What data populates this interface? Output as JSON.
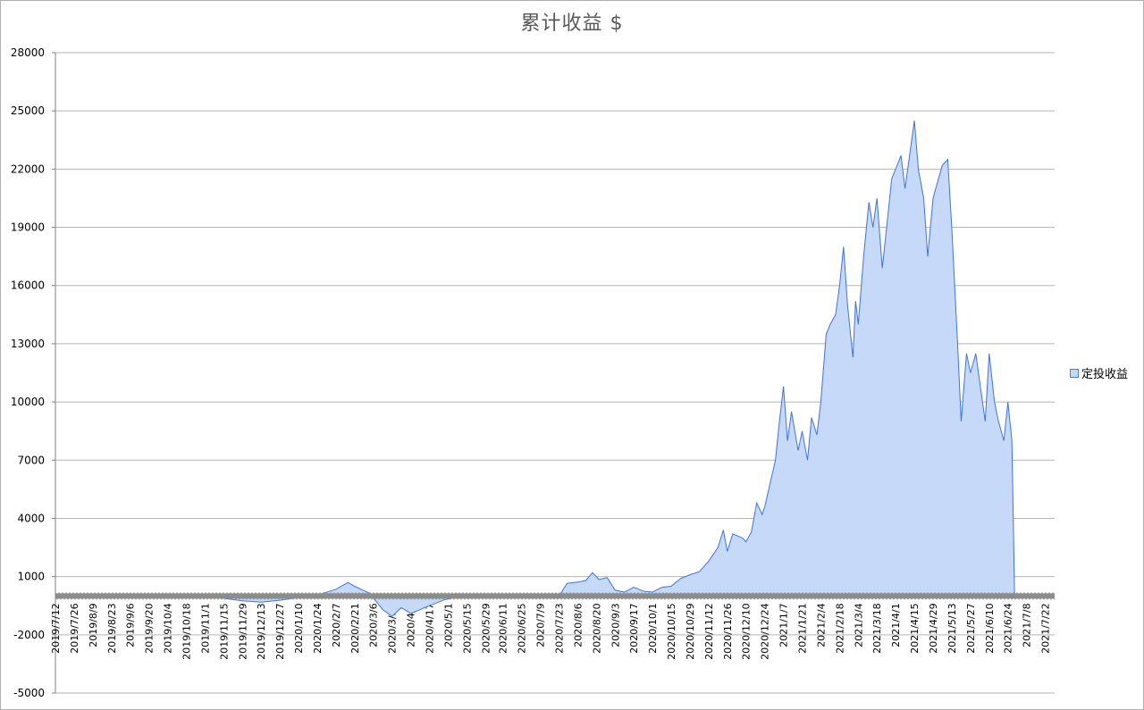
{
  "chart_data": {
    "type": "area",
    "title": "累计收益 $",
    "xlabel": "",
    "ylabel": "",
    "ylim": [
      -5000,
      28000
    ],
    "yticks": [
      28000,
      25000,
      22000,
      19000,
      16000,
      13000,
      10000,
      7000,
      4000,
      1000,
      -2000,
      -5000
    ],
    "x_tick_labels": [
      "2019/7/12",
      "2019/7/26",
      "2019/8/9",
      "2019/8/23",
      "2019/9/6",
      "2019/9/20",
      "2019/10/4",
      "2019/10/18",
      "2019/11/1",
      "2019/11/15",
      "2019/11/29",
      "2019/12/13",
      "2019/12/27",
      "2020/1/10",
      "2020/1/24",
      "2020/2/7",
      "2020/2/21",
      "2020/3/6",
      "2020/3/20",
      "2020/4/3",
      "2020/4/17",
      "2020/5/1",
      "2020/5/15",
      "2020/5/29",
      "2020/6/11",
      "2020/6/25",
      "2020/7/9",
      "2020/7/23",
      "2020/8/6",
      "2020/8/20",
      "2020/9/3",
      "2020/9/17",
      "2020/10/1",
      "2020/10/15",
      "2020/10/29",
      "2020/11/12",
      "2020/11/26",
      "2020/12/10",
      "2020/12/24",
      "2021/1/7",
      "2021/1/21",
      "2021/2/4",
      "2021/2/18",
      "2021/3/4",
      "2021/3/18",
      "2021/4/1",
      "2021/4/15",
      "2021/4/29",
      "2021/5/13",
      "2021/5/27",
      "2021/6/10",
      "2021/6/24",
      "2021/7/8",
      "2021/7/22"
    ],
    "x_range": [
      "2019/7/12",
      "2021/7/29"
    ],
    "grid": true,
    "legend_position": "right",
    "colors": {
      "fill": "#c6d9f8",
      "line": "#3f74d8",
      "grid": "#b5b5b5",
      "baseline": "#8c8c8c"
    },
    "series": [
      {
        "name": "定投收益",
        "points": [
          [
            "2019/7/12",
            0
          ],
          [
            "2019/9/20",
            20
          ],
          [
            "2019/10/18",
            60
          ],
          [
            "2019/11/15",
            -120
          ],
          [
            "2019/11/29",
            -250
          ],
          [
            "2019/12/13",
            -320
          ],
          [
            "2019/12/27",
            -220
          ],
          [
            "2020/1/10",
            -80
          ],
          [
            "2020/1/24",
            50
          ],
          [
            "2020/2/7",
            350
          ],
          [
            "2020/2/16",
            700
          ],
          [
            "2020/2/21",
            500
          ],
          [
            "2020/3/3",
            150
          ],
          [
            "2020/3/13",
            -700
          ],
          [
            "2020/3/20",
            -1050
          ],
          [
            "2020/3/27",
            -600
          ],
          [
            "2020/4/3",
            -900
          ],
          [
            "2020/4/17",
            -500
          ],
          [
            "2020/4/28",
            -200
          ],
          [
            "2020/5/8",
            -50
          ],
          [
            "2020/6/1",
            0
          ],
          [
            "2020/7/23",
            0
          ],
          [
            "2020/7/29",
            650
          ],
          [
            "2020/8/6",
            720
          ],
          [
            "2020/8/12",
            800
          ],
          [
            "2020/8/17",
            1200
          ],
          [
            "2020/8/22",
            850
          ],
          [
            "2020/8/28",
            950
          ],
          [
            "2020/9/3",
            300
          ],
          [
            "2020/9/10",
            200
          ],
          [
            "2020/9/17",
            450
          ],
          [
            "2020/9/24",
            250
          ],
          [
            "2020/10/1",
            200
          ],
          [
            "2020/10/8",
            450
          ],
          [
            "2020/10/15",
            500
          ],
          [
            "2020/10/22",
            900
          ],
          [
            "2020/10/29",
            1100
          ],
          [
            "2020/11/5",
            1250
          ],
          [
            "2020/11/12",
            1800
          ],
          [
            "2020/11/19",
            2500
          ],
          [
            "2020/11/23",
            3400
          ],
          [
            "2020/11/26",
            2300
          ],
          [
            "2020/11/30",
            3200
          ],
          [
            "2020/12/7",
            3000
          ],
          [
            "2020/12/10",
            2800
          ],
          [
            "2020/12/14",
            3300
          ],
          [
            "2020/12/18",
            4800
          ],
          [
            "2020/12/22",
            4200
          ],
          [
            "2020/12/24",
            4600
          ],
          [
            "2020/12/28",
            5800
          ],
          [
            "2021/1/1",
            7000
          ],
          [
            "2021/1/4",
            9000
          ],
          [
            "2021/1/7",
            10800
          ],
          [
            "2021/1/10",
            8000
          ],
          [
            "2021/1/13",
            9500
          ],
          [
            "2021/1/18",
            7500
          ],
          [
            "2021/1/21",
            8500
          ],
          [
            "2021/1/25",
            7000
          ],
          [
            "2021/1/28",
            9200
          ],
          [
            "2021/2/1",
            8300
          ],
          [
            "2021/2/4",
            10000
          ],
          [
            "2021/2/8",
            13500
          ],
          [
            "2021/2/11",
            14000
          ],
          [
            "2021/2/15",
            14500
          ],
          [
            "2021/2/18",
            16000
          ],
          [
            "2021/2/21",
            18000
          ],
          [
            "2021/2/24",
            15000
          ],
          [
            "2021/2/28",
            12300
          ],
          [
            "2021/3/2",
            15200
          ],
          [
            "2021/3/4",
            14000
          ],
          [
            "2021/3/8",
            17500
          ],
          [
            "2021/3/12",
            20300
          ],
          [
            "2021/3/15",
            19000
          ],
          [
            "2021/3/18",
            20500
          ],
          [
            "2021/3/22",
            16900
          ],
          [
            "2021/3/26",
            19500
          ],
          [
            "2021/3/29",
            21500
          ],
          [
            "2021/4/1",
            22000
          ],
          [
            "2021/4/5",
            22700
          ],
          [
            "2021/4/8",
            21000
          ],
          [
            "2021/4/11",
            22500
          ],
          [
            "2021/4/15",
            24500
          ],
          [
            "2021/4/18",
            22000
          ],
          [
            "2021/4/22",
            20500
          ],
          [
            "2021/4/25",
            17500
          ],
          [
            "2021/4/29",
            20500
          ],
          [
            "2021/5/3",
            21500
          ],
          [
            "2021/5/6",
            22200
          ],
          [
            "2021/5/10",
            22500
          ],
          [
            "2021/5/13",
            19000
          ],
          [
            "2021/5/17",
            13500
          ],
          [
            "2021/5/20",
            9000
          ],
          [
            "2021/5/24",
            12500
          ],
          [
            "2021/5/27",
            11500
          ],
          [
            "2021/5/31",
            12500
          ],
          [
            "2021/6/3",
            11000
          ],
          [
            "2021/6/7",
            9000
          ],
          [
            "2021/6/10",
            12500
          ],
          [
            "2021/6/14",
            10000
          ],
          [
            "2021/6/17",
            9000
          ],
          [
            "2021/6/21",
            8000
          ],
          [
            "2021/6/24",
            10000
          ],
          [
            "2021/6/27",
            8000
          ],
          [
            "2021/6/29",
            0
          ]
        ]
      }
    ]
  }
}
